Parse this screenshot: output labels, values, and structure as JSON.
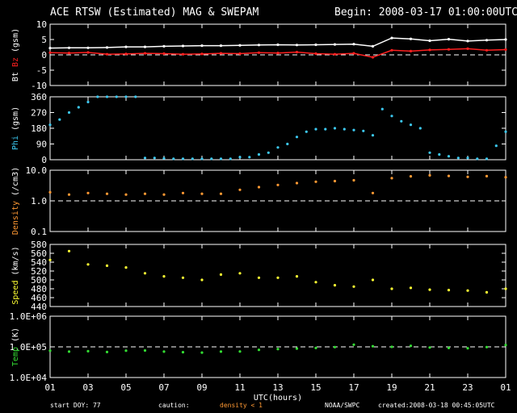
{
  "header": {
    "title": "ACE RTSW (Estimated) MAG & SWEPAM",
    "begin": "Begin: 2008-03-17 01:00:00UTC"
  },
  "footer": {
    "start_doy": "start DOY:  77",
    "caution": "caution:",
    "density_note": "density < 1",
    "source": "NOAA/SWPC",
    "created": "created:2008-03-18 00:45:05UTC"
  },
  "xaxis": {
    "title": "UTC(hours)",
    "ticks": [
      "01",
      "03",
      "05",
      "07",
      "09",
      "11",
      "13",
      "15",
      "17",
      "19",
      "21",
      "23",
      "01"
    ]
  },
  "colors": {
    "bt": "#ffffff",
    "bz": "#ff2020",
    "phi": "#3cc8f0",
    "density": "#ff9933",
    "speed": "#ffff33",
    "temp": "#33dd33",
    "caution": "#ff9933"
  },
  "chart_data": [
    {
      "type": "line",
      "title": "",
      "ylabel_parts": [
        "Bt",
        "Bz",
        "(gsm)"
      ],
      "ylim": [
        -10,
        10
      ],
      "yticks": [
        "10",
        "5",
        "0",
        "-5",
        "-10"
      ],
      "x_hours": [
        1,
        2,
        3,
        4,
        5,
        6,
        7,
        8,
        9,
        10,
        11,
        12,
        13,
        14,
        15,
        16,
        17,
        18,
        19,
        20,
        21,
        22,
        23,
        24,
        25
      ],
      "series": [
        {
          "name": "Bt",
          "values": [
            2.2,
            2.3,
            2.3,
            2.4,
            2.6,
            2.6,
            2.8,
            2.9,
            3.0,
            3.0,
            3.1,
            3.2,
            3.3,
            3.2,
            3.3,
            3.4,
            3.5,
            2.8,
            5.5,
            5.2,
            4.6,
            5.1,
            4.5,
            4.8,
            5.0
          ]
        },
        {
          "name": "Bz",
          "values": [
            0.7,
            0.6,
            0.8,
            0.2,
            0.3,
            0.5,
            0.4,
            0.2,
            0.3,
            0.5,
            0.4,
            0.7,
            0.6,
            0.9,
            0.4,
            0.2,
            0.5,
            -0.8,
            1.5,
            1.2,
            1.6,
            1.8,
            2.0,
            1.5,
            1.7
          ]
        }
      ],
      "reference_line": 0
    },
    {
      "type": "scatter",
      "title": "",
      "ylabel_parts": [
        "Phi",
        "(gsm)"
      ],
      "ylim": [
        0,
        360
      ],
      "yticks": [
        "360",
        "270",
        "180",
        "90",
        "0"
      ],
      "x_hours": [
        1,
        1.5,
        2,
        2.5,
        3,
        3.5,
        4,
        4.5,
        5,
        5.5,
        6,
        6.5,
        7,
        7.5,
        8,
        8.5,
        9,
        9.5,
        10,
        10.5,
        11,
        11.5,
        12,
        12.5,
        13,
        13.5,
        14,
        14.5,
        15,
        15.5,
        16,
        16.5,
        17,
        17.5,
        18,
        18.5,
        19,
        19.5,
        20,
        20.5,
        21,
        21.5,
        22,
        22.5,
        23,
        23.5,
        24,
        24.5,
        25
      ],
      "values": [
        200,
        230,
        270,
        300,
        330,
        360,
        360,
        360,
        360,
        360,
        10,
        10,
        8,
        5,
        5,
        5,
        5,
        5,
        5,
        5,
        15,
        15,
        30,
        40,
        70,
        90,
        130,
        160,
        175,
        175,
        180,
        175,
        170,
        165,
        140,
        290,
        250,
        220,
        200,
        180,
        40,
        30,
        20,
        10,
        10,
        5,
        5,
        80,
        160
      ]
    },
    {
      "type": "scatter",
      "title": "",
      "ylabel_parts": [
        "Density",
        "(/cm3)"
      ],
      "yscale": "log",
      "ylim": [
        0.1,
        10
      ],
      "yticks": [
        "10.0",
        "1.0",
        "0.1"
      ],
      "x_hours": [
        1,
        2,
        3,
        4,
        5,
        6,
        7,
        8,
        9,
        10,
        11,
        12,
        13,
        14,
        15,
        16,
        17,
        18,
        19,
        20,
        21,
        22,
        23,
        24,
        25
      ],
      "values": [
        1.9,
        1.6,
        1.8,
        1.7,
        1.6,
        1.7,
        1.6,
        1.8,
        1.7,
        1.7,
        2.3,
        2.8,
        3.3,
        3.8,
        4.2,
        4.4,
        4.7,
        1.8,
        5.5,
        6.3,
        6.8,
        6.5,
        6.1,
        6.4,
        5.9
      ],
      "reference_line": 1.0
    },
    {
      "type": "scatter",
      "title": "",
      "ylabel_parts": [
        "Speed",
        "(km/s)"
      ],
      "ylim": [
        440,
        580
      ],
      "yticks": [
        "580",
        "560",
        "540",
        "520",
        "500",
        "480",
        "460",
        "440"
      ],
      "x_hours": [
        1,
        2,
        3,
        4,
        5,
        6,
        7,
        8,
        9,
        10,
        11,
        12,
        13,
        14,
        15,
        16,
        17,
        18,
        19,
        20,
        21,
        22,
        23,
        24,
        25
      ],
      "values": [
        545,
        565,
        535,
        532,
        528,
        515,
        508,
        505,
        500,
        512,
        515,
        505,
        505,
        508,
        495,
        488,
        485,
        500,
        480,
        482,
        478,
        477,
        476,
        472,
        480
      ]
    },
    {
      "type": "scatter",
      "title": "",
      "ylabel_parts": [
        "Temp",
        "(K)"
      ],
      "yscale": "log",
      "ylim": [
        10000,
        1000000
      ],
      "yticks": [
        "1.0E+06",
        "1.0E+05",
        "1.0E+04"
      ],
      "x_hours": [
        1,
        2,
        3,
        4,
        5,
        6,
        7,
        8,
        9,
        10,
        11,
        12,
        13,
        14,
        15,
        16,
        17,
        18,
        19,
        20,
        21,
        22,
        23,
        24,
        25
      ],
      "values": [
        75000,
        70000,
        72000,
        68000,
        75000,
        76000,
        70000,
        67000,
        65000,
        70000,
        71000,
        80000,
        85000,
        88000,
        92000,
        98000,
        118000,
        105000,
        100000,
        108000,
        95000,
        92000,
        90000,
        98000,
        115000
      ],
      "reference_line": 100000
    }
  ]
}
